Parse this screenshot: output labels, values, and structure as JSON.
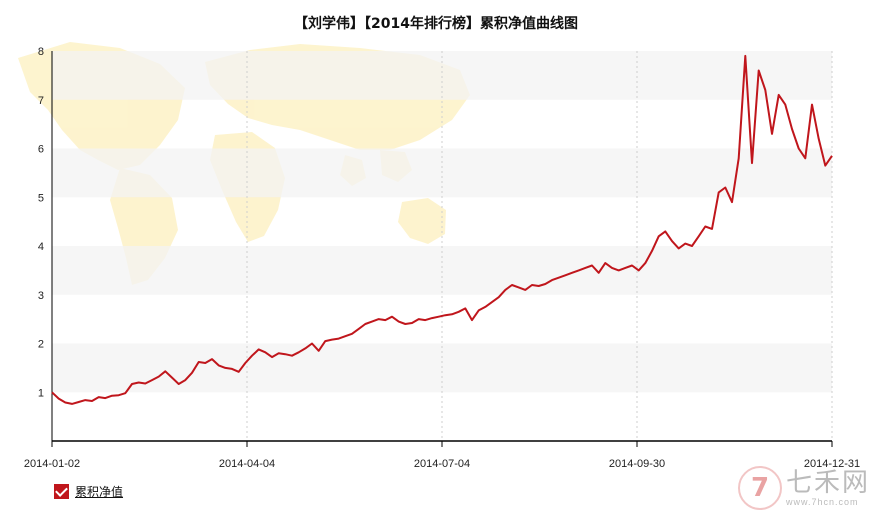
{
  "chart_data": {
    "type": "line",
    "title": "【刘学伟】【2014年排行榜】累积净值曲线图",
    "xlabel": "",
    "ylabel": "",
    "x_tick_labels": [
      "2014-01-02",
      "2014-04-04",
      "2014-07-04",
      "2014-09-30",
      "2014-12-31"
    ],
    "y_ticks": [
      1,
      2,
      3,
      4,
      5,
      6,
      7,
      8
    ],
    "ylim": [
      0,
      8
    ],
    "grid": "alternating horizontal bands, dotted vertical lines",
    "legend_position": "bottom-left",
    "series": [
      {
        "name": "累积净值",
        "color": "#c0161c",
        "values": [
          1.0,
          0.87,
          0.79,
          0.76,
          0.8,
          0.84,
          0.82,
          0.9,
          0.88,
          0.93,
          0.94,
          0.98,
          1.17,
          1.2,
          1.18,
          1.25,
          1.32,
          1.43,
          1.3,
          1.17,
          1.25,
          1.4,
          1.62,
          1.6,
          1.68,
          1.55,
          1.5,
          1.48,
          1.42,
          1.6,
          1.75,
          1.88,
          1.82,
          1.72,
          1.8,
          1.78,
          1.75,
          1.82,
          1.9,
          2.0,
          1.85,
          2.05,
          2.08,
          2.1,
          2.15,
          2.2,
          2.3,
          2.4,
          2.45,
          2.5,
          2.48,
          2.55,
          2.45,
          2.4,
          2.42,
          2.5,
          2.48,
          2.52,
          2.55,
          2.58,
          2.6,
          2.65,
          2.72,
          2.48,
          2.68,
          2.75,
          2.85,
          2.95,
          3.1,
          3.2,
          3.15,
          3.1,
          3.2,
          3.18,
          3.22,
          3.3,
          3.35,
          3.4,
          3.45,
          3.5,
          3.55,
          3.6,
          3.45,
          3.65,
          3.55,
          3.5,
          3.55,
          3.6,
          3.5,
          3.65,
          3.9,
          4.2,
          4.3,
          4.1,
          3.95,
          4.05,
          4.0,
          4.2,
          4.4,
          4.35,
          5.1,
          5.2,
          4.9,
          5.8,
          7.9,
          5.7,
          7.6,
          7.2,
          6.3,
          7.1,
          6.9,
          6.4,
          6.0,
          5.8,
          6.9,
          6.2,
          5.65,
          5.85
        ]
      }
    ]
  },
  "legend": {
    "label": "累积净值"
  },
  "watermark": {
    "logo": "7",
    "name": "七禾网",
    "url": "www.7hcn.com"
  }
}
